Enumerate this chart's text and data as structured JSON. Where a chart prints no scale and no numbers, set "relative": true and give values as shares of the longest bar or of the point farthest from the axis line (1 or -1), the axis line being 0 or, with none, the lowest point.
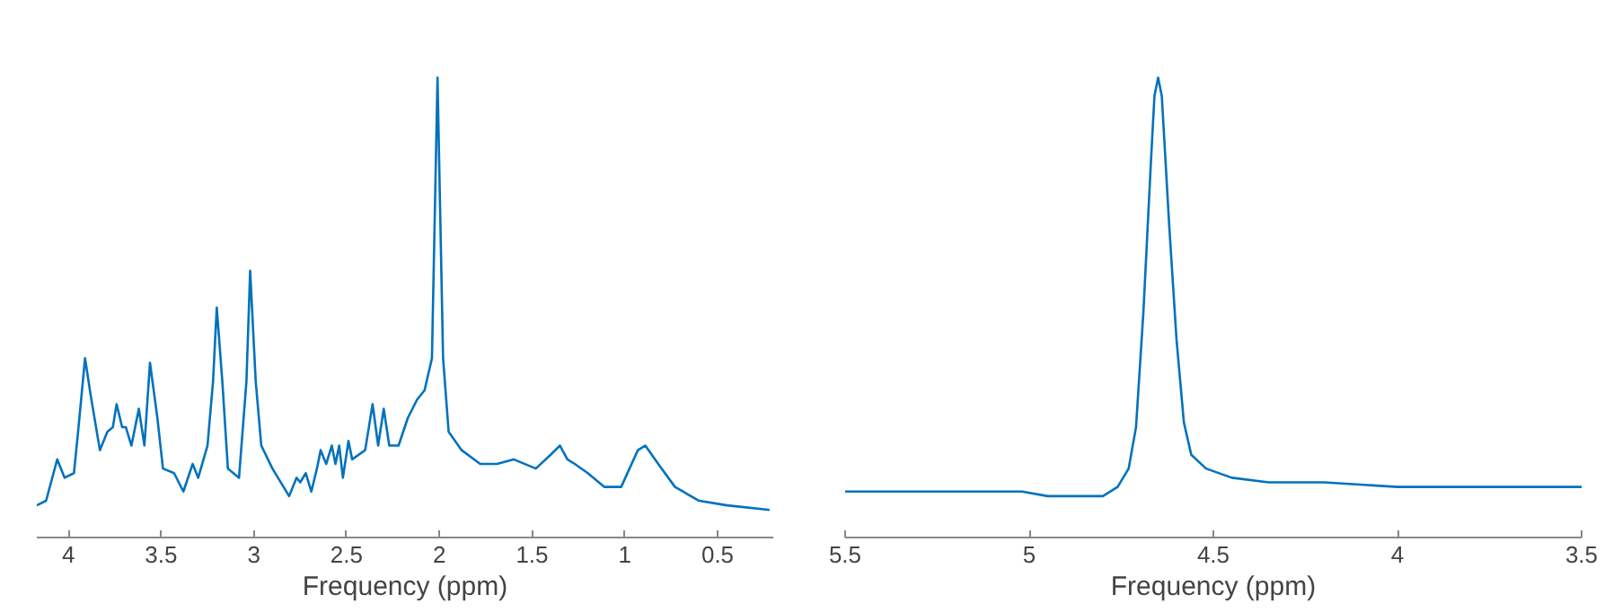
{
  "chart_data": [
    {
      "type": "line",
      "relative": true,
      "xlabel": "Frequency (ppm)",
      "xlim": [
        4.17,
        0.2
      ],
      "xticks": [
        4,
        3.5,
        3,
        2.5,
        2,
        1.5,
        1,
        0.5
      ],
      "tick_labels": "x",
      "grid": false,
      "series": [
        {
          "color": "#0072bd",
          "x": [
            4.17,
            4.12,
            4.06,
            4.02,
            3.97,
            3.95,
            3.91,
            3.88,
            3.83,
            3.79,
            3.76,
            3.74,
            3.71,
            3.69,
            3.66,
            3.62,
            3.59,
            3.56,
            3.52,
            3.49,
            3.43,
            3.38,
            3.33,
            3.3,
            3.25,
            3.22,
            3.2,
            3.17,
            3.14,
            3.08,
            3.04,
            3.02,
            2.99,
            2.96,
            2.9,
            2.81,
            2.77,
            2.75,
            2.72,
            2.69,
            2.66,
            2.64,
            2.61,
            2.58,
            2.56,
            2.54,
            2.52,
            2.49,
            2.47,
            2.4,
            2.36,
            2.33,
            2.3,
            2.27,
            2.22,
            2.17,
            2.12,
            2.08,
            2.04,
            2.01,
            1.98,
            1.95,
            1.88,
            1.78,
            1.69,
            1.6,
            1.48,
            1.4,
            1.35,
            1.31,
            1.27,
            1.2,
            1.11,
            1.02,
            0.93,
            0.89,
            0.82,
            0.73,
            0.6,
            0.45,
            0.22
          ],
          "values": [
            0.07,
            0.08,
            0.17,
            0.13,
            0.14,
            0.22,
            0.39,
            0.31,
            0.19,
            0.23,
            0.24,
            0.29,
            0.24,
            0.24,
            0.2,
            0.28,
            0.2,
            0.38,
            0.26,
            0.15,
            0.14,
            0.1,
            0.16,
            0.13,
            0.2,
            0.34,
            0.5,
            0.34,
            0.15,
            0.13,
            0.34,
            0.58,
            0.34,
            0.2,
            0.15,
            0.09,
            0.13,
            0.12,
            0.14,
            0.1,
            0.15,
            0.19,
            0.16,
            0.2,
            0.16,
            0.2,
            0.13,
            0.21,
            0.17,
            0.19,
            0.29,
            0.2,
            0.28,
            0.2,
            0.2,
            0.26,
            0.3,
            0.32,
            0.39,
            1,
            0.39,
            0.23,
            0.19,
            0.16,
            0.16,
            0.17,
            0.15,
            0.18,
            0.2,
            0.17,
            0.16,
            0.14,
            0.11,
            0.11,
            0.19,
            0.2,
            0.16,
            0.11,
            0.08,
            0.07,
            0.06
          ]
        }
      ]
    },
    {
      "type": "line",
      "relative": true,
      "xlabel": "Frequency (ppm)",
      "xlim": [
        5.5,
        3.5
      ],
      "xticks": [
        5.5,
        5,
        4.5,
        4,
        3.5
      ],
      "tick_labels": "x",
      "grid": false,
      "series": [
        {
          "color": "#0072bd",
          "x": [
            5.5,
            5.02,
            4.95,
            4.8,
            4.76,
            4.73,
            4.71,
            4.69,
            4.67,
            4.66,
            4.65,
            4.64,
            4.62,
            4.6,
            4.58,
            4.56,
            4.52,
            4.45,
            4.35,
            4.2,
            4.0,
            3.75,
            3.5
          ],
          "values": [
            0.1,
            0.1,
            0.09,
            0.09,
            0.11,
            0.15,
            0.24,
            0.49,
            0.81,
            0.96,
            1,
            0.96,
            0.68,
            0.43,
            0.25,
            0.18,
            0.15,
            0.13,
            0.12,
            0.12,
            0.11,
            0.11,
            0.11
          ]
        }
      ]
    }
  ]
}
